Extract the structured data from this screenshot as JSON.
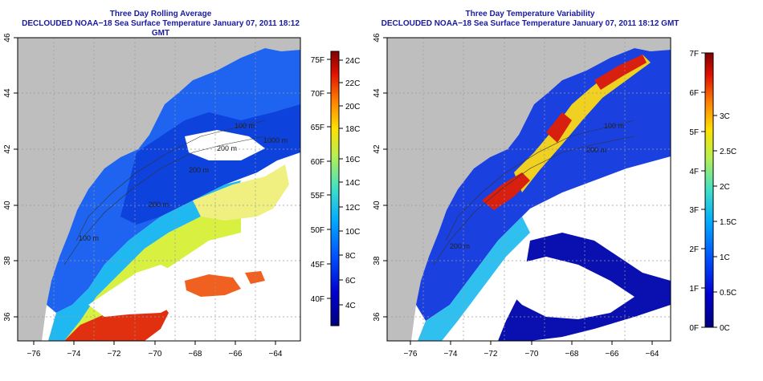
{
  "left_panel": {
    "title_line1": "Three Day Rolling Average",
    "title_line2": "DECLOUDED NOAA−18 Sea Surface Temperature January 07, 2011 18:12 GMT",
    "colorbar": {
      "f_labels": [
        "75F",
        "70F",
        "65F",
        "60F",
        "55F",
        "50F",
        "45F",
        "40F"
      ],
      "c_labels": [
        "24C",
        "22C",
        "20C",
        "18C",
        "16C",
        "14C",
        "12C",
        "10C",
        "8C",
        "6C",
        "4C"
      ]
    },
    "contour_labels": [
      "100 m",
      "200 m",
      "200 m",
      "100 m",
      "1000 m",
      "200 m"
    ]
  },
  "right_panel": {
    "title_line1": "Three Day Temperature Variability",
    "title_line2": "DECLOUDED NOAA−18 Sea Surface Temperature January 07, 2011 18:12 GMT",
    "colorbar": {
      "f_labels": [
        "7F",
        "6F",
        "5F",
        "4F",
        "3F",
        "2F",
        "1F",
        "0F"
      ],
      "c_labels": [
        "3C",
        "2.5C",
        "2C",
        "1.5C",
        "1C",
        "0.5C",
        "0C"
      ]
    },
    "contour_labels": [
      "100 m",
      "200 m",
      "200 m"
    ]
  },
  "axes": {
    "lon_labels": [
      "−76",
      "−74",
      "−72",
      "−70",
      "−68",
      "−66",
      "−64"
    ],
    "lat_labels": [
      "46",
      "44",
      "42",
      "40",
      "38",
      "36"
    ]
  },
  "colors": {
    "land": "#bebebe",
    "water_blank": "#ffffff",
    "title": "#1a1aa0"
  }
}
